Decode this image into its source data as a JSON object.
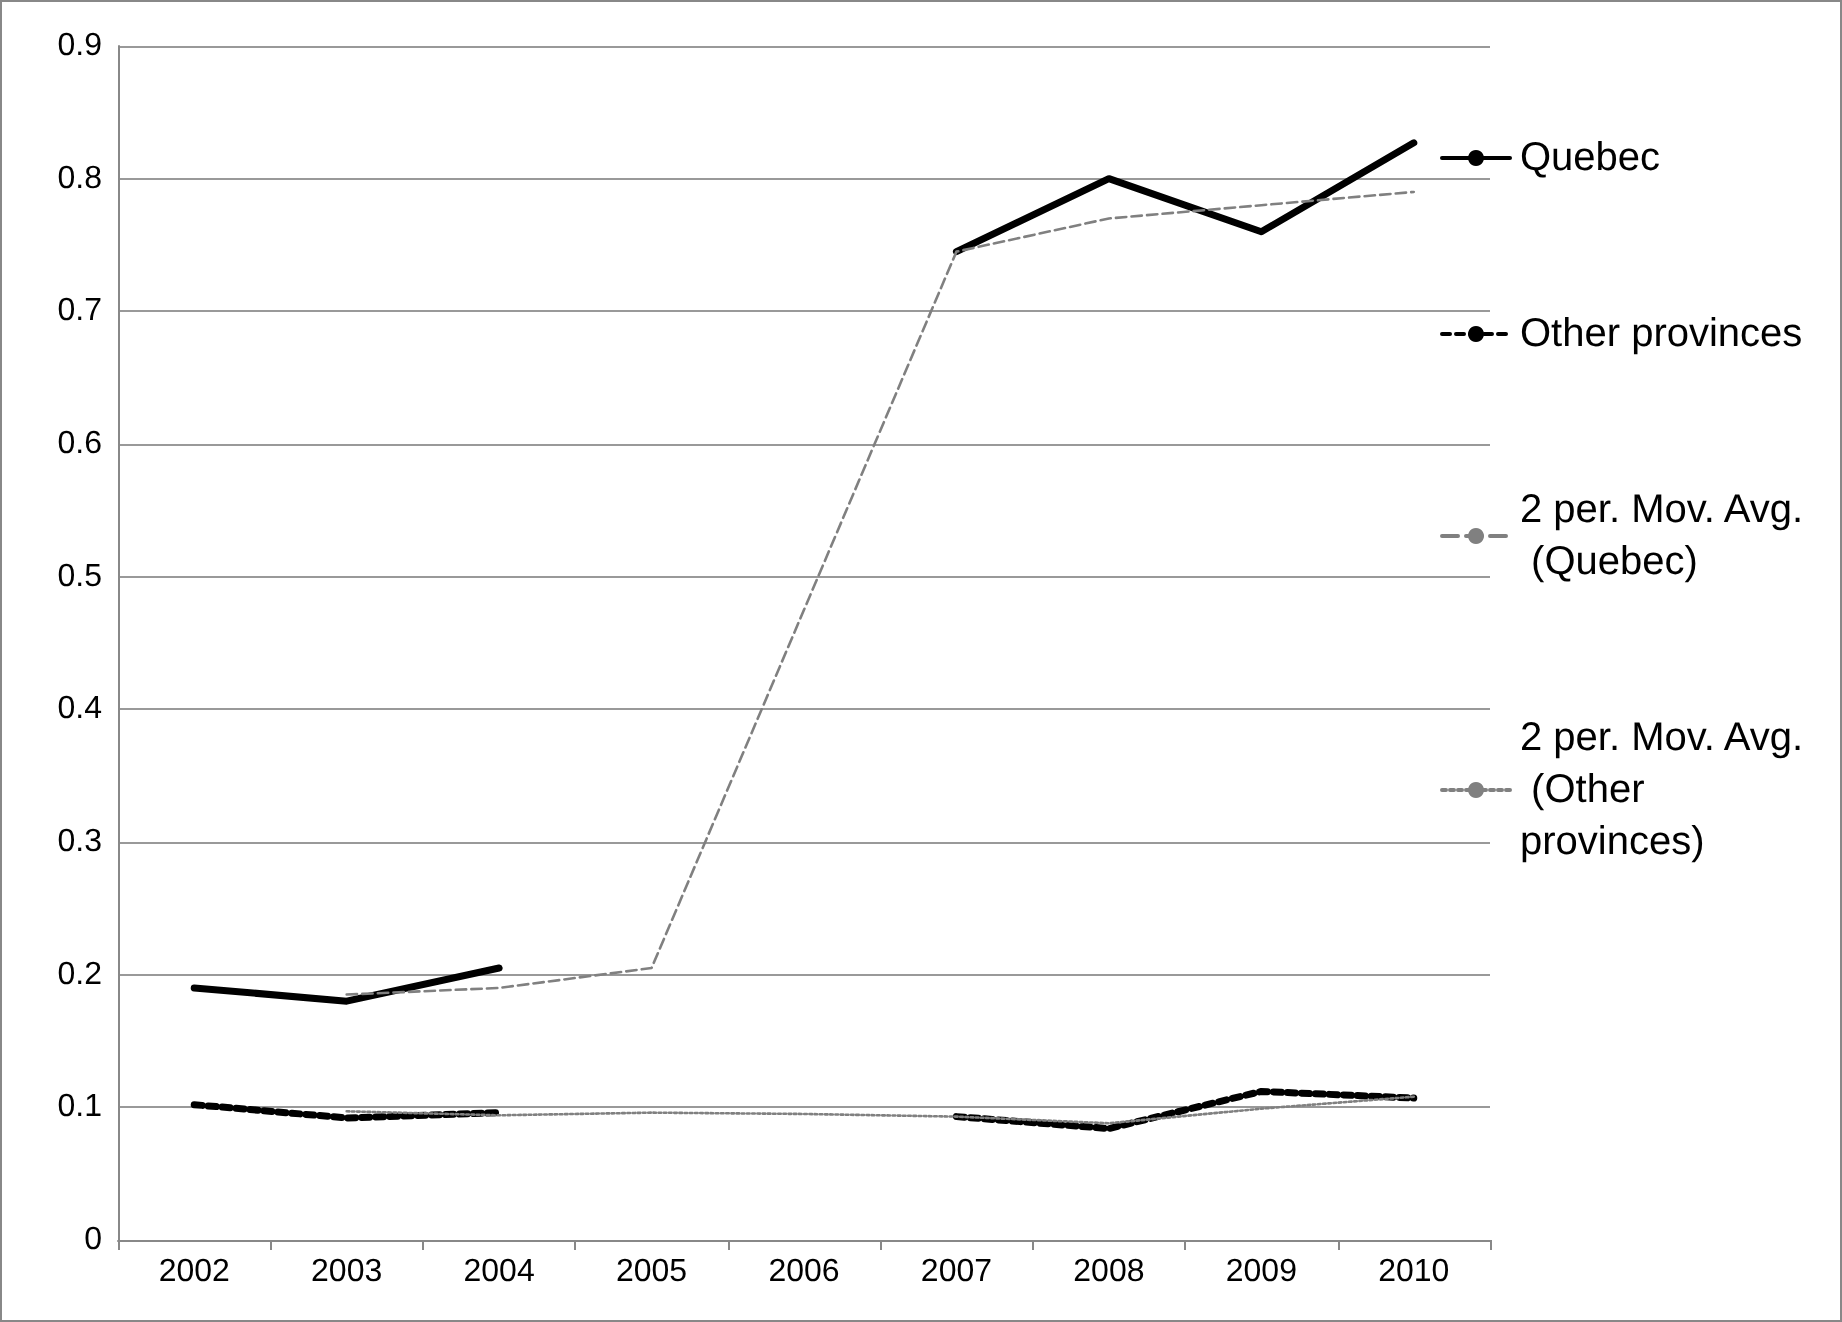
{
  "chart_data": {
    "type": "line",
    "categories": [
      "2002",
      "2003",
      "2004",
      "2005",
      "2006",
      "2007",
      "2008",
      "2009",
      "2010"
    ],
    "series": [
      {
        "name": "Quebec",
        "color": "#000000",
        "line_style": "solid",
        "values": [
          0.19,
          0.18,
          0.205,
          null,
          null,
          0.745,
          0.8,
          0.76,
          0.827
        ]
      },
      {
        "name": "Other provinces",
        "color": "#000000",
        "line_style": "dashed",
        "values": [
          0.102,
          0.092,
          0.096,
          null,
          null,
          0.093,
          0.084,
          0.112,
          0.107
        ]
      },
      {
        "name": "2 per. Mov. Avg. (Quebec)",
        "color": "#808080",
        "line_style": "dashed",
        "values": [
          null,
          0.185,
          0.19,
          0.205,
          0.475,
          0.745,
          0.77,
          0.78,
          0.79
        ]
      },
      {
        "name": "2 per. Mov. Avg. (Other provinces)",
        "color": "#808080",
        "line_style": "dotted",
        "values": [
          null,
          0.097,
          0.094,
          0.096,
          0.095,
          0.093,
          0.088,
          0.099,
          0.108
        ]
      }
    ],
    "ylim": [
      0,
      0.9
    ],
    "yticks": [
      0,
      0.1,
      0.2,
      0.3,
      0.4,
      0.5,
      0.6,
      0.7,
      0.8,
      0.9
    ],
    "grid": "y",
    "legend": "right",
    "marker": "none"
  }
}
